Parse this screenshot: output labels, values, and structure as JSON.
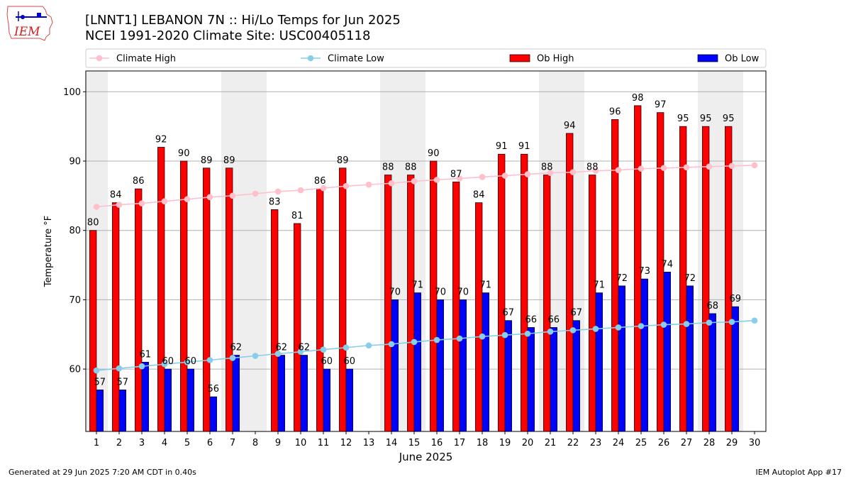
{
  "header": {
    "title_line1": "[LNNT1] LEBANON 7N :: Hi/Lo Temps for Jun 2025",
    "title_line2": "NCEI 1991-2020 Climate Site: USC00405118",
    "logo_text": "IEM"
  },
  "footer": {
    "generated": "Generated at 29 Jun 2025 7:20 AM CDT in 0.40s",
    "app": "IEM Autoplot App #17"
  },
  "colors": {
    "ob_high": "#ff0000",
    "ob_low": "#0000ff",
    "climate_high": "#ffc0cb",
    "climate_low": "#87ceeb",
    "weekend_shade": "#eeeeee",
    "grid": "#b0b0b0"
  },
  "chart_data": {
    "type": "bar",
    "xlabel": "June 2025",
    "ylabel": "Temperature °F",
    "ylim": [
      51,
      103
    ],
    "yticks": [
      60,
      70,
      80,
      90,
      100
    ],
    "x": [
      1,
      2,
      3,
      4,
      5,
      6,
      7,
      8,
      9,
      10,
      11,
      12,
      13,
      14,
      15,
      16,
      17,
      18,
      19,
      20,
      21,
      22,
      23,
      24,
      25,
      26,
      27,
      28,
      29,
      30
    ],
    "grid": "horizontal",
    "legend_position": "top",
    "weekend_shaded_days": [
      1,
      7,
      8,
      14,
      15,
      21,
      22,
      28,
      29
    ],
    "series": [
      {
        "name": "Climate High",
        "kind": "line",
        "values": [
          83.4,
          83.7,
          83.9,
          84.2,
          84.5,
          84.8,
          85.0,
          85.3,
          85.6,
          85.8,
          86.1,
          86.4,
          86.6,
          86.8,
          87.1,
          87.3,
          87.5,
          87.7,
          87.9,
          88.1,
          88.3,
          88.4,
          88.6,
          88.7,
          88.9,
          89.0,
          89.1,
          89.2,
          89.3,
          89.4
        ]
      },
      {
        "name": "Climate Low",
        "kind": "line",
        "values": [
          59.8,
          60.1,
          60.4,
          60.7,
          61.0,
          61.3,
          61.6,
          61.9,
          62.2,
          62.5,
          62.8,
          63.1,
          63.4,
          63.6,
          63.9,
          64.2,
          64.4,
          64.7,
          64.9,
          65.1,
          65.4,
          65.6,
          65.8,
          66.0,
          66.2,
          66.4,
          66.5,
          66.7,
          66.8,
          67.0
        ]
      },
      {
        "name": "Ob High",
        "kind": "bar",
        "values": [
          80,
          84,
          86,
          92,
          90,
          89,
          89,
          null,
          83,
          81,
          86,
          89,
          null,
          88,
          88,
          90,
          87,
          84,
          91,
          91,
          88,
          94,
          88,
          96,
          98,
          97,
          95,
          95,
          95,
          null
        ]
      },
      {
        "name": "Ob Low",
        "kind": "bar",
        "values": [
          57,
          57,
          61,
          60,
          60,
          56,
          62,
          null,
          62,
          62,
          60,
          60,
          null,
          70,
          71,
          70,
          70,
          71,
          67,
          66,
          66,
          67,
          71,
          72,
          73,
          74,
          72,
          68,
          69,
          null
        ]
      }
    ]
  }
}
